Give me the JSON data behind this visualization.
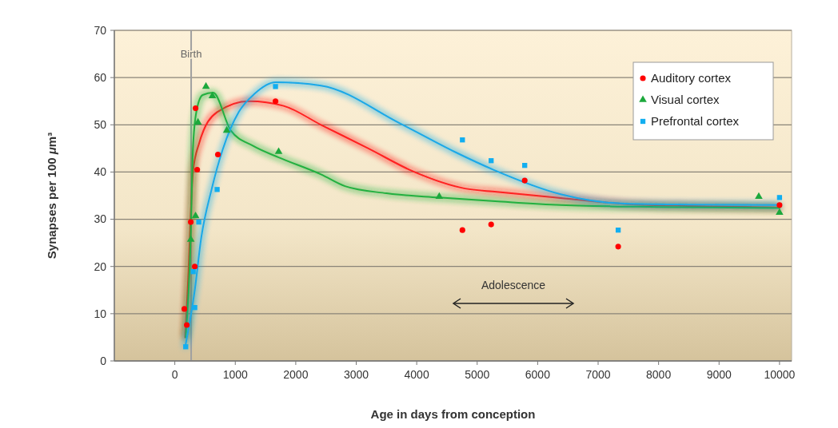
{
  "chart_data": {
    "type": "scatter",
    "xlabel": "Age in days from conception",
    "ylabel": "Synapses per 100 μm³",
    "xlim": [
      -1000,
      10200
    ],
    "xticks": [
      0,
      1000,
      2000,
      3000,
      4000,
      5000,
      6000,
      7000,
      8000,
      9000,
      10000
    ],
    "ylim": [
      0,
      70
    ],
    "yticks": [
      0,
      10,
      20,
      30,
      40,
      50,
      60,
      70
    ],
    "grid": "y",
    "legend": "top right",
    "ref_lines": [
      {
        "axis": "x",
        "value": 270,
        "label": "Birth",
        "color": "#a0a0a0"
      }
    ],
    "annotations": [
      "Adolescence"
    ],
    "series": [
      {
        "type": "line",
        "color": "#ff2020",
        "x": [
          170,
          230,
          260,
          300,
          400,
          700,
          1230,
          1800,
          2417,
          3200,
          3963,
          4800,
          5323,
          6380,
          7500,
          8500,
          10000
        ],
        "values": [
          5,
          20,
          30,
          40,
          46,
          52.7,
          55,
          54,
          50,
          45,
          40,
          36.5,
          35.8,
          34.5,
          33.2,
          32.8,
          32.5
        ]
      },
      {
        "type": "line",
        "color": "#22b040",
        "x": [
          180,
          260,
          300,
          360,
          460,
          634,
          925,
          1300,
          1717,
          2417,
          2814,
          3500,
          4360,
          5300,
          6380,
          8000,
          10000
        ],
        "values": [
          5,
          25,
          45,
          53,
          56.3,
          56.8,
          48.8,
          45.5,
          43.1,
          39.5,
          37,
          35.5,
          34.6,
          33.8,
          33,
          32.6,
          32.4
        ]
      },
      {
        "type": "line",
        "color": "#1aa8e8",
        "x": [
          172,
          330,
          436,
          608,
          793,
          1057,
          1321,
          1665,
          2417,
          3738,
          4624,
          5284,
          6380,
          7437,
          8500,
          10000
        ],
        "values": [
          3,
          15,
          26,
          36.3,
          44.8,
          52.7,
          56.6,
          59,
          58.3,
          50.2,
          44.3,
          40.4,
          35.3,
          33.3,
          33.1,
          33
        ]
      },
      {
        "name": "Auditory cortex",
        "marker": "circle",
        "color": "#ff0000",
        "x": [
          158,
          198,
          264,
          330,
          343,
          370,
          713,
          1665,
          4756,
          5231,
          5786,
          7332,
          10000
        ],
        "values": [
          11,
          7.6,
          29.4,
          20,
          53.5,
          40.5,
          43.7,
          55,
          27.7,
          28.9,
          38.2,
          24.2,
          33
        ]
      },
      {
        "name": "Visual cortex",
        "marker": "triangle",
        "color": "#1ca83c",
        "x": [
          264,
          343,
          383,
          515,
          621,
          859,
          1717,
          4373,
          9657,
          10000
        ],
        "values": [
          25.7,
          30.7,
          50.5,
          58.1,
          56.1,
          48.8,
          44.3,
          34.8,
          34.8,
          31.4
        ]
      },
      {
        "name": "Prefrontal cortex",
        "marker": "square",
        "color": "#12aef0",
        "x": [
          180,
          304,
          330,
          396,
          700,
          1665,
          4756,
          5231,
          5786,
          7332,
          10000
        ],
        "values": [
          3,
          18.9,
          11.3,
          29.4,
          36.3,
          58.1,
          46.8,
          42.4,
          41.4,
          27.7,
          34.6
        ]
      }
    ]
  }
}
